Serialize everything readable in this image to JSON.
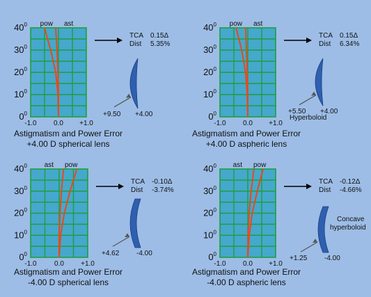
{
  "colors": {
    "background": "#9dbde6",
    "plot_fill": "#45a8cc",
    "grid": "#1f9e3e",
    "curve": "#e8491d",
    "lens": "#2e5fb0"
  },
  "yticks": [
    "0",
    "10",
    "20",
    "30",
    "40"
  ],
  "ytick_exp": "0",
  "panels": [
    {
      "title": "Astigmatism and Power Error",
      "subtitle": "+4.00 D spherical lens",
      "x_ticks": [
        "-1.0",
        "0.0",
        "+1.0"
      ],
      "curve_labels": [
        "pow",
        "ast"
      ],
      "tca_label": "TCA",
      "tca_value": "0.15Δ",
      "dist_label": "Dist",
      "dist_value": "5.35%",
      "lens_left_value": "+9.50",
      "lens_right_value": "+4.00",
      "lens_note": "",
      "lens_type": "convex",
      "series": [
        {
          "name": "pow",
          "points": [
            [
              0,
              0
            ],
            [
              -0.02,
              10
            ],
            [
              -0.1,
              20
            ],
            [
              -0.28,
              30
            ],
            [
              -0.5,
              40
            ]
          ]
        },
        {
          "name": "ast",
          "points": [
            [
              0,
              0
            ],
            [
              0,
              10
            ],
            [
              -0.02,
              20
            ],
            [
              -0.05,
              30
            ],
            [
              -0.1,
              40
            ]
          ]
        }
      ]
    },
    {
      "title": "Astigmatism and Power Error",
      "subtitle": "+4.00 D aspheric lens",
      "x_ticks": [
        "-1.0",
        "0.0",
        "+1.0"
      ],
      "curve_labels": [
        "pow",
        "ast"
      ],
      "tca_label": "TCA",
      "tca_value": "0.15Δ",
      "dist_label": "Dist",
      "dist_value": "6.34%",
      "lens_left_value": "+5.50",
      "lens_right_value": "+4.00",
      "lens_note": "Hyperboloid",
      "lens_type": "convex",
      "series": [
        {
          "name": "pow",
          "points": [
            [
              0,
              0
            ],
            [
              -0.02,
              10
            ],
            [
              -0.08,
              20
            ],
            [
              -0.22,
              30
            ],
            [
              -0.42,
              40
            ]
          ]
        },
        {
          "name": "ast",
          "points": [
            [
              0,
              0
            ],
            [
              0,
              10
            ],
            [
              -0.02,
              20
            ],
            [
              -0.05,
              30
            ],
            [
              -0.08,
              40
            ]
          ]
        }
      ]
    },
    {
      "title": "Astigmatism and Power Error",
      "subtitle": "-4.00 D spherical lens",
      "x_ticks": [
        "-1.0",
        "0.0",
        "+1.0"
      ],
      "curve_labels": [
        "ast",
        "pow"
      ],
      "tca_label": "TCA",
      "tca_value": "-0.10Δ",
      "dist_label": "Dist",
      "dist_value": "-3.74%",
      "lens_left_value": "+4.62",
      "lens_right_value": "-4.00",
      "lens_note": "",
      "lens_type": "concave",
      "series": [
        {
          "name": "ast",
          "points": [
            [
              0,
              0
            ],
            [
              0,
              10
            ],
            [
              0.03,
              20
            ],
            [
              0.08,
              30
            ],
            [
              0.15,
              40
            ]
          ]
        },
        {
          "name": "pow",
          "points": [
            [
              0,
              0
            ],
            [
              0.05,
              10
            ],
            [
              0.18,
              20
            ],
            [
              0.38,
              30
            ],
            [
              0.62,
              40
            ]
          ]
        }
      ]
    },
    {
      "title": "Astigmatism and Power Error",
      "subtitle": "-4.00 D aspheric lens",
      "x_ticks": [
        "-1.0",
        "0.0",
        "+1.0"
      ],
      "curve_labels": [
        "ast",
        "pow"
      ],
      "tca_label": "TCA",
      "tca_value": "-0.12Δ",
      "dist_label": "Dist",
      "dist_value": "-4.66%",
      "lens_left_value": "+1.25",
      "lens_right_value": "-4.00",
      "lens_note": "Concave hyperboloid",
      "lens_type": "concave",
      "series": [
        {
          "name": "ast",
          "points": [
            [
              0,
              0
            ],
            [
              0.01,
              10
            ],
            [
              0.05,
              20
            ],
            [
              0.12,
              30
            ],
            [
              0.22,
              40
            ]
          ]
        },
        {
          "name": "pow",
          "points": [
            [
              0,
              0
            ],
            [
              0.05,
              10
            ],
            [
              0.16,
              20
            ],
            [
              0.34,
              30
            ],
            [
              0.55,
              40
            ]
          ]
        }
      ]
    }
  ]
}
